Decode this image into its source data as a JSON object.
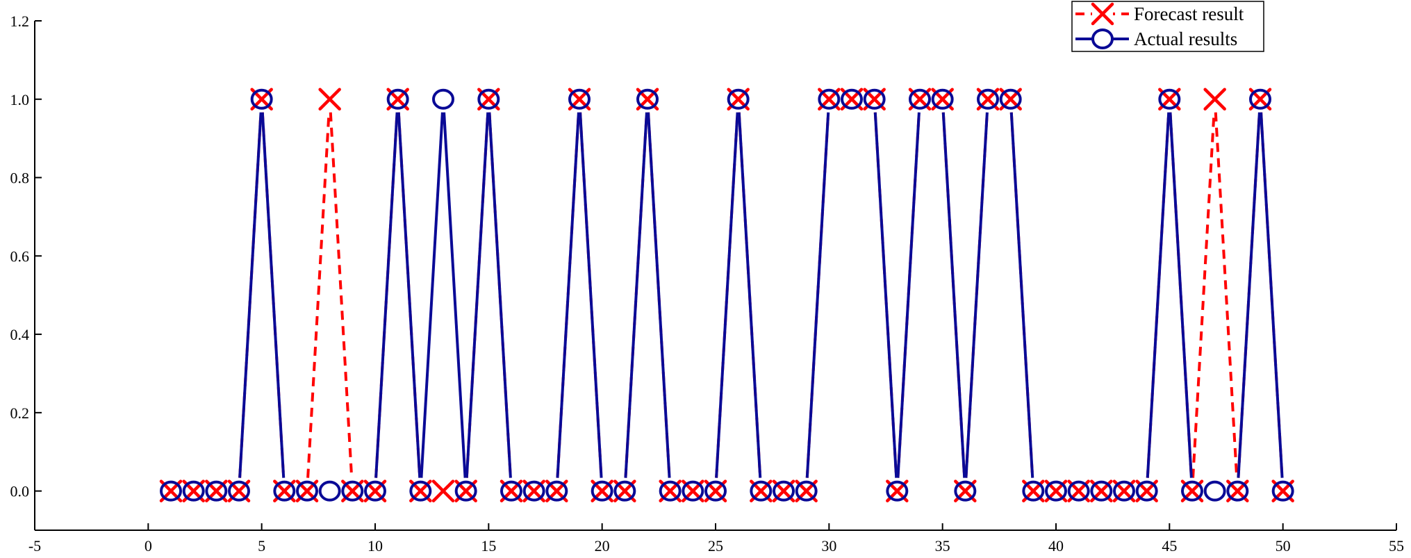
{
  "chart_data": {
    "type": "line",
    "title": "",
    "xlabel": "",
    "ylabel": "",
    "xlim": [
      -5,
      55
    ],
    "ylim": [
      -0.1,
      1.2
    ],
    "xticks": [
      -5,
      0,
      5,
      10,
      15,
      20,
      25,
      30,
      35,
      40,
      45,
      50,
      55
    ],
    "yticks": [
      0.0,
      0.2,
      0.4,
      0.6,
      0.8,
      1.0,
      1.2
    ],
    "xtick_labels": [
      "-5",
      "0",
      "5",
      "10",
      "15",
      "20",
      "25",
      "30",
      "35",
      "40",
      "45",
      "50",
      "55"
    ],
    "ytick_labels": [
      "0.0",
      "0.2",
      "0.4",
      "0.6",
      "0.8",
      "1.0",
      "1.2"
    ],
    "grid": false,
    "legend_position": "top-right",
    "x": [
      1,
      2,
      3,
      4,
      5,
      6,
      7,
      8,
      9,
      10,
      11,
      12,
      13,
      14,
      15,
      16,
      17,
      18,
      19,
      20,
      21,
      22,
      23,
      24,
      25,
      26,
      27,
      28,
      29,
      30,
      31,
      32,
      33,
      34,
      35,
      36,
      37,
      38,
      39,
      40,
      41,
      42,
      43,
      44,
      45,
      46,
      47,
      48,
      49,
      50
    ],
    "series": [
      {
        "name": "Forecast result",
        "color": "#ff0000",
        "line_style": "dashed",
        "marker": "x",
        "values": [
          0,
          0,
          0,
          0,
          1,
          0,
          0,
          1,
          0,
          0,
          1,
          0,
          0,
          0,
          1,
          0,
          0,
          0,
          1,
          0,
          0,
          1,
          0,
          0,
          0,
          1,
          0,
          0,
          0,
          1,
          1,
          1,
          0,
          1,
          1,
          0,
          1,
          1,
          0,
          0,
          0,
          0,
          0,
          0,
          1,
          0,
          1,
          0,
          1,
          0
        ]
      },
      {
        "name": "Actual results",
        "color": "#0a0a96",
        "line_style": "solid",
        "marker": "o",
        "values": [
          0,
          0,
          0,
          0,
          1,
          0,
          0,
          0,
          0,
          0,
          1,
          0,
          1,
          0,
          1,
          0,
          0,
          0,
          1,
          0,
          0,
          1,
          0,
          0,
          0,
          1,
          0,
          0,
          0,
          1,
          1,
          1,
          0,
          1,
          1,
          0,
          1,
          1,
          0,
          0,
          0,
          0,
          0,
          0,
          1,
          0,
          0,
          0,
          1,
          0
        ]
      }
    ]
  }
}
